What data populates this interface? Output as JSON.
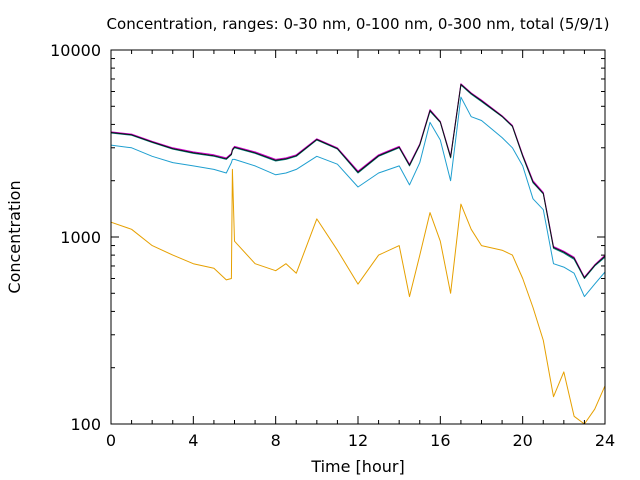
{
  "chart_data": {
    "type": "line",
    "title": "Concentration, ranges: 0-30 nm, 0-100 nm, 0-300 nm, total (5/9/1)",
    "xlabel": "Time [hour]",
    "ylabel": "Concentration",
    "xlim": [
      0,
      24
    ],
    "ylim": [
      100,
      10000
    ],
    "yscale": "log",
    "grid": false,
    "legend": "none",
    "x_ticks": [
      "0",
      "4",
      "8",
      "12",
      "16",
      "20",
      "24"
    ],
    "y_ticks": [
      "100",
      "1000",
      "10000"
    ],
    "x": [
      0,
      1,
      2,
      3,
      4,
      5,
      5.6,
      5.85,
      5.9,
      6,
      7,
      8,
      8.5,
      9,
      10,
      11,
      12,
      13,
      14,
      14.5,
      15,
      15.5,
      16,
      16.5,
      17,
      17.5,
      18,
      19,
      19.5,
      20,
      20.5,
      21,
      21.5,
      22,
      22.5,
      23,
      23.5,
      24
    ],
    "series": [
      {
        "color": "#e6a000",
        "values": [
          1200,
          1100,
          900,
          800,
          720,
          680,
          590,
          600,
          2300,
          950,
          720,
          660,
          720,
          640,
          1250,
          850,
          560,
          800,
          900,
          480,
          800,
          1350,
          950,
          500,
          1500,
          1100,
          900,
          850,
          800,
          600,
          420,
          280,
          140,
          190,
          110,
          100,
          120,
          160
        ]
      },
      {
        "color": "#1f9fd0",
        "values": [
          3100,
          3000,
          2700,
          2500,
          2400,
          2300,
          2200,
          2500,
          2600,
          2600,
          2400,
          2150,
          2200,
          2300,
          2700,
          2450,
          1850,
          2200,
          2400,
          1900,
          2500,
          4100,
          3300,
          2000,
          5600,
          4400,
          4200,
          3400,
          3000,
          2400,
          1600,
          1400,
          720,
          690,
          640,
          480,
          560,
          650
        ]
      },
      {
        "color": "#008080",
        "values": [
          3600,
          3500,
          3200,
          2950,
          2800,
          2700,
          2600,
          2750,
          2900,
          3000,
          2800,
          2550,
          2600,
          2700,
          3300,
          2950,
          2200,
          2700,
          3000,
          2400,
          3100,
          4700,
          4100,
          2650,
          6500,
          5800,
          5300,
          4400,
          3900,
          2700,
          1950,
          1700,
          870,
          820,
          760,
          600,
          700,
          780
        ]
      },
      {
        "color": "#d000d0",
        "values": [
          3650,
          3550,
          3250,
          3000,
          2850,
          2750,
          2650,
          2800,
          2950,
          3050,
          2850,
          2600,
          2650,
          2750,
          3350,
          3000,
          2250,
          2750,
          3050,
          2450,
          3150,
          4800,
          4150,
          2700,
          6600,
          5900,
          5400,
          4450,
          3950,
          2750,
          2000,
          1730,
          890,
          840,
          780,
          610,
          710,
          800
        ]
      },
      {
        "color": "#111111",
        "values": [
          3620,
          3520,
          3220,
          2970,
          2820,
          2720,
          2620,
          2770,
          2920,
          3020,
          2820,
          2570,
          2620,
          2720,
          3320,
          2970,
          2220,
          2720,
          3020,
          2420,
          3120,
          4750,
          4120,
          2670,
          6550,
          5850,
          5350,
          4420,
          3920,
          2720,
          1970,
          1710,
          880,
          830,
          770,
          605,
          705,
          790
        ]
      }
    ]
  }
}
